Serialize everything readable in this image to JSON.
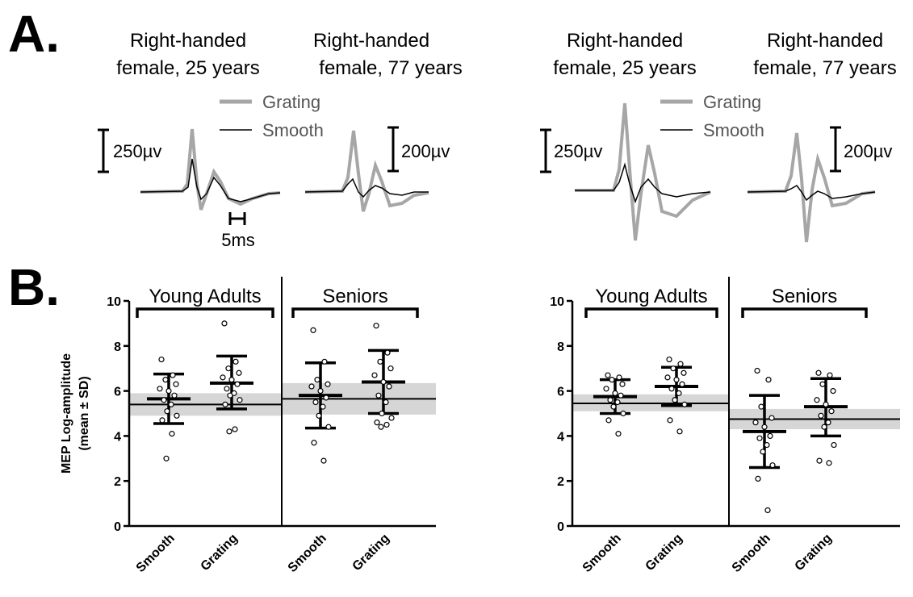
{
  "panel_letters": {
    "a": "A.",
    "b": "B."
  },
  "traces": {
    "legend": {
      "grating": "Grating",
      "smooth": "Smooth"
    },
    "colors": {
      "grating": "#a6a6a6",
      "smooth": "#000000"
    },
    "time_scale_label": "5ms",
    "panels": [
      {
        "title1": "Right-handed",
        "title2": "female, 25 years",
        "scale_label": "250µv"
      },
      {
        "title1": "Right-handed",
        "title2": "female, 77 years",
        "scale_label": "200µv"
      },
      {
        "title1": "Right-handed",
        "title2": "female, 25 years",
        "scale_label": "250µv"
      },
      {
        "title1": "Right-handed",
        "title2": "female, 77 years",
        "scale_label": "200µv"
      }
    ]
  },
  "chart_data": [
    {
      "type": "scatter",
      "ylabel_line1": "MEP Log-amplitude",
      "ylabel_line2": "(mean ± SD)",
      "ylim": [
        0,
        10
      ],
      "yticks": [
        "0",
        "2",
        "4",
        "6",
        "8",
        "10"
      ],
      "groups": [
        {
          "label": "Young Adults",
          "mean": 5.4,
          "band": [
            4.9,
            5.9
          ],
          "conditions": [
            {
              "name": "Smooth",
              "mean": 5.65,
              "sd_low": 4.55,
              "sd_high": 6.75,
              "points": [
                7.4,
                6.7,
                6.5,
                6.3,
                6.1,
                6.0,
                5.8,
                5.6,
                5.4,
                5.1,
                4.9,
                4.7,
                4.1,
                3.0
              ]
            },
            {
              "name": "Grating",
              "mean": 6.35,
              "sd_low": 5.2,
              "sd_high": 7.55,
              "points": [
                9.0,
                7.3,
                7.0,
                6.8,
                6.6,
                6.5,
                6.3,
                6.1,
                5.9,
                5.8,
                5.6,
                5.4,
                4.3,
                4.2
              ]
            }
          ]
        },
        {
          "label": "Seniors",
          "mean": 5.65,
          "band": [
            4.95,
            6.35
          ],
          "conditions": [
            {
              "name": "Smooth",
              "mean": 5.8,
              "sd_low": 4.35,
              "sd_high": 7.25,
              "points": [
                8.7,
                7.3,
                6.5,
                6.3,
                6.2,
                6.0,
                5.7,
                5.5,
                5.3,
                4.9,
                4.4,
                3.7,
                2.9
              ]
            },
            {
              "name": "Grating",
              "mean": 6.4,
              "sd_low": 5.0,
              "sd_high": 7.8,
              "points": [
                8.9,
                7.7,
                7.3,
                7.0,
                6.7,
                6.4,
                6.2,
                5.8,
                5.5,
                5.0,
                4.8,
                4.6,
                4.5,
                4.4
              ]
            }
          ]
        }
      ]
    },
    {
      "type": "scatter",
      "ylim": [
        0,
        10
      ],
      "yticks": [
        "0",
        "2",
        "4",
        "6",
        "8",
        "10"
      ],
      "groups": [
        {
          "label": "Young Adults",
          "mean": 5.45,
          "band": [
            5.1,
            5.85
          ],
          "conditions": [
            {
              "name": "Smooth",
              "mean": 5.75,
              "sd_low": 5.0,
              "sd_high": 6.5,
              "points": [
                6.7,
                6.6,
                6.5,
                6.3,
                6.1,
                5.9,
                5.8,
                5.6,
                5.5,
                5.3,
                5.0,
                4.7,
                4.1
              ]
            },
            {
              "name": "Grating",
              "mean": 6.2,
              "sd_low": 5.35,
              "sd_high": 7.05,
              "points": [
                7.4,
                7.2,
                7.0,
                6.8,
                6.6,
                6.5,
                6.3,
                6.1,
                5.9,
                5.6,
                5.4,
                4.7,
                4.2
              ]
            }
          ]
        },
        {
          "label": "Seniors",
          "mean": 4.75,
          "band": [
            4.3,
            5.2
          ],
          "conditions": [
            {
              "name": "Smooth",
              "mean": 4.2,
              "sd_low": 2.6,
              "sd_high": 5.8,
              "points": [
                6.9,
                6.5,
                5.3,
                4.8,
                4.6,
                4.4,
                4.0,
                3.9,
                3.6,
                3.3,
                2.7,
                2.1,
                0.7
              ]
            },
            {
              "name": "Grating",
              "mean": 5.3,
              "sd_low": 4.0,
              "sd_high": 6.55,
              "points": [
                6.8,
                6.7,
                6.3,
                6.0,
                5.6,
                5.4,
                5.1,
                4.9,
                4.6,
                4.4,
                3.6,
                2.9,
                2.8
              ]
            }
          ]
        }
      ]
    }
  ]
}
